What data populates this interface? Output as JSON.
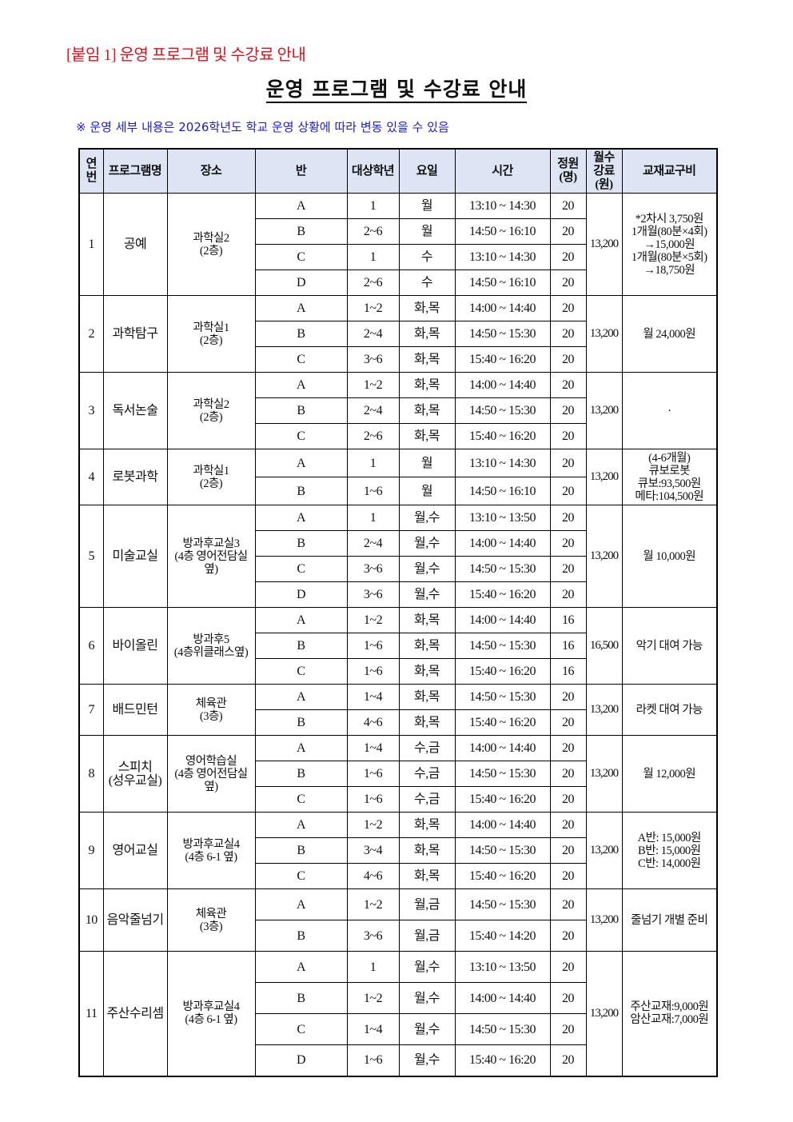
{
  "attachment_label": "[붙임 1] 운영 프로그램 및 수강료 안내",
  "title": "운영 프로그램 및 수강료 안내",
  "note": "※ 운영 세부 내용은 2026학년도 학교 운영 상황에 따라 변동 있을 수 있음",
  "table": {
    "headers": [
      "연\n번",
      "프로그램명",
      "장소",
      "반",
      "대상학년",
      "요일",
      "시간",
      "정원\n(명)",
      "월수\n강료\n(원)",
      "교재교구비"
    ],
    "groups": [
      {
        "no": "1",
        "name": "공예",
        "place": "과학실2\n(2층)",
        "fee": "13,200",
        "materials": "*2차시 3,750원\n1개월(80분×4회)\n→15,000원\n1개월(80분×5회)\n→18,750원",
        "rows": [
          [
            "A",
            "1",
            "월",
            "13:10 ~ 14:30",
            "20"
          ],
          [
            "B",
            "2~6",
            "월",
            "14:50 ~ 16:10",
            "20"
          ],
          [
            "C",
            "1",
            "수",
            "13:10 ~ 14:30",
            "20"
          ],
          [
            "D",
            "2~6",
            "수",
            "14:50 ~ 16:10",
            "20"
          ]
        ]
      },
      {
        "no": "2",
        "name": "과학탐구",
        "place": "과학실1\n(2층)",
        "fee": "13,200",
        "materials": "월 24,000원",
        "rows": [
          [
            "A",
            "1~2",
            "화,목",
            "14:00 ~ 14:40",
            "20"
          ],
          [
            "B",
            "2~4",
            "화,목",
            "14:50 ~ 15:30",
            "20"
          ],
          [
            "C",
            "3~6",
            "화,목",
            "15:40 ~ 16:20",
            "20"
          ]
        ]
      },
      {
        "no": "3",
        "name": "독서논술",
        "place": "과학실2\n(2층)",
        "fee": "13,200",
        "materials": "·",
        "rows": [
          [
            "A",
            "1~2",
            "화,목",
            "14:00 ~ 14:40",
            "20"
          ],
          [
            "B",
            "2~4",
            "화,목",
            "14:50 ~ 15:30",
            "20"
          ],
          [
            "C",
            "2~6",
            "화,목",
            "15:40 ~ 16:20",
            "20"
          ]
        ]
      },
      {
        "no": "4",
        "name": "로봇과학",
        "place": "과학실1\n(2층)",
        "fee": "13,200",
        "materials": "(4-6개월)\n큐보로봇\n큐보:93,500원\n메타:104,500원",
        "rows": [
          [
            "A",
            "1",
            "월",
            "13:10 ~ 14:30",
            "20"
          ],
          [
            "B",
            "1~6",
            "월",
            "14:50 ~ 16:10",
            "20"
          ]
        ]
      },
      {
        "no": "5",
        "name": "미술교실",
        "place": "방과후교실3\n(4층 영어전담실 옆)",
        "fee": "13,200",
        "materials": "월 10,000원",
        "rows": [
          [
            "A",
            "1",
            "월,수",
            "13:10 ~ 13:50",
            "20"
          ],
          [
            "B",
            "2~4",
            "월,수",
            "14:00 ~ 14:40",
            "20"
          ],
          [
            "C",
            "3~6",
            "월,수",
            "14:50 ~ 15:30",
            "20"
          ],
          [
            "D",
            "3~6",
            "월,수",
            "15:40 ~ 16:20",
            "20"
          ]
        ]
      },
      {
        "no": "6",
        "name": "바이올린",
        "place": "방과후5\n(4층위클래스옆)",
        "fee": "16,500",
        "materials": "악기 대여 가능",
        "rows": [
          [
            "A",
            "1~2",
            "화,목",
            "14:00 ~ 14:40",
            "16"
          ],
          [
            "B",
            "1~6",
            "화,목",
            "14:50 ~ 15:30",
            "16"
          ],
          [
            "C",
            "1~6",
            "화,목",
            "15:40 ~ 16:20",
            "16"
          ]
        ]
      },
      {
        "no": "7",
        "name": "배드민턴",
        "place": "체육관\n(3층)",
        "fee": "13,200",
        "materials": "라켓 대여 가능",
        "rows": [
          [
            "A",
            "1~4",
            "화,목",
            "14:50 ~ 15:30",
            "20"
          ],
          [
            "B",
            "4~6",
            "화,목",
            "15:40 ~ 16:20",
            "20"
          ]
        ]
      },
      {
        "no": "8",
        "name": "스피치\n(성우교실)",
        "place": "영어학습실\n(4층 영어전담실 옆)",
        "fee": "13,200",
        "materials": "월 12,000원",
        "rows": [
          [
            "A",
            "1~4",
            "수,금",
            "14:00 ~ 14:40",
            "20"
          ],
          [
            "B",
            "1~6",
            "수,금",
            "14:50 ~ 15:30",
            "20"
          ],
          [
            "C",
            "1~6",
            "수,금",
            "15:40 ~ 16:20",
            "20"
          ]
        ]
      },
      {
        "no": "9",
        "name": "영어교실",
        "place": "방과후교실4\n(4층 6-1 옆)",
        "fee": "13,200",
        "materials": "A반: 15,000원\nB반: 15,000원\nC반: 14,000원",
        "rows": [
          [
            "A",
            "1~2",
            "화,목",
            "14:00 ~ 14:40",
            "20"
          ],
          [
            "B",
            "3~4",
            "화,목",
            "14:50 ~ 15:30",
            "20"
          ],
          [
            "C",
            "4~6",
            "화,목",
            "15:40 ~ 16:20",
            "20"
          ]
        ]
      },
      {
        "no": "10",
        "name": "음악줄넘기",
        "place": "체육관\n(3층)",
        "fee": "13,200",
        "materials": "줄넘기 개별 준비",
        "rows": [
          [
            "A",
            "1~2",
            "월,금",
            "14:50 ~ 15:30",
            "20"
          ],
          [
            "B",
            "3~6",
            "월,금",
            "15:40 ~ 14:20",
            "20"
          ]
        ]
      },
      {
        "no": "11",
        "name": "주산수리셈",
        "place": "방과후교실4\n(4층 6-1 옆)",
        "fee": "13,200",
        "materials": "주산교재:9,000원\n암산교재:7,000원",
        "rows": [
          [
            "A",
            "1",
            "월,수",
            "13:10 ~ 13:50",
            "20"
          ],
          [
            "B",
            "1~2",
            "월,수",
            "14:00 ~ 14:40",
            "20"
          ],
          [
            "C",
            "1~4",
            "월,수",
            "14:50 ~ 15:30",
            "20"
          ],
          [
            "D",
            "1~6",
            "월,수",
            "15:40 ~ 16:20",
            "20"
          ]
        ]
      }
    ]
  }
}
